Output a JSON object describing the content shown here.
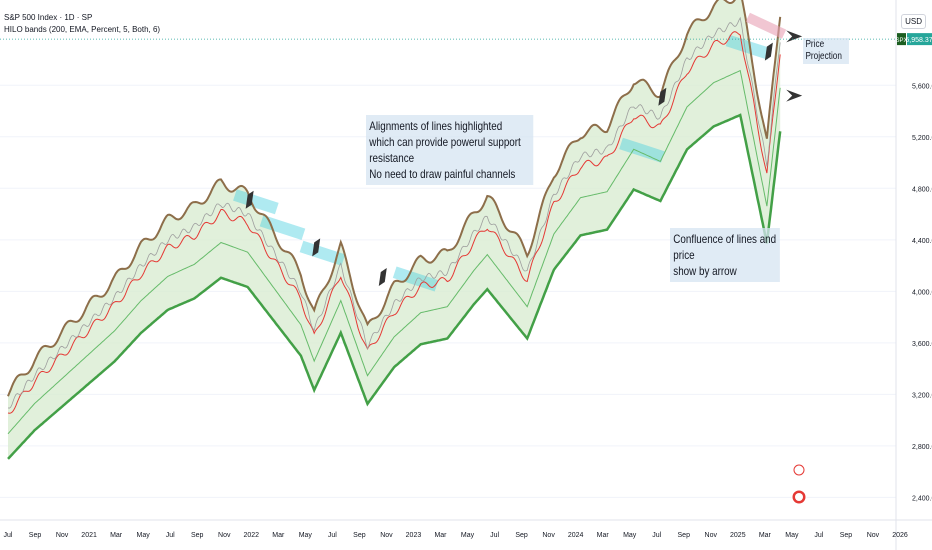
{
  "header": {
    "title": "S&P 500 Index · 1D · SP",
    "indicator": "HILO bands (200, EMA, Percent, 5, Both, 6)",
    "currency": "USD"
  },
  "price_tag": {
    "symbol": "SPX",
    "value": "5,958.37",
    "color": "#26a69a"
  },
  "annotations": {
    "alignments": [
      "Alignments of lines highlighted",
      "which can provide powerul support resistance",
      "No need to draw painful channels"
    ],
    "confluence": [
      "Confluence of lines and price",
      "show by arrow"
    ],
    "projection": "Price Projection"
  },
  "colors": {
    "upper_band": "#8d6e4a",
    "lower_band": "#43a047",
    "band_fill": "#d9ecd2",
    "mid_line": "#e53935",
    "inner_green": "#66bb6a",
    "highlight": "#4dd0e1",
    "highlight_pink": "#e8a0b4",
    "arrow": "#333333",
    "grid": "#f0f3fa"
  },
  "chart_data": {
    "type": "line",
    "title": "S&P 500 Index · 1D · SP",
    "xlabel": "",
    "ylabel": "",
    "ylim": [
      2240,
      6200
    ],
    "y_ticks": [
      2400,
      2800,
      3200,
      3600,
      4000,
      4400,
      4800,
      5200,
      5600
    ],
    "x_ticks": [
      "Jul",
      "Sep",
      "Nov",
      "2021",
      "Mar",
      "May",
      "Jul",
      "Sep",
      "Nov",
      "2022",
      "Mar",
      "May",
      "Jul",
      "Sep",
      "Nov",
      "2023",
      "Mar",
      "May",
      "Jul",
      "Sep",
      "Nov",
      "2024",
      "Mar",
      "May",
      "Jul",
      "Sep",
      "Nov",
      "2025",
      "Mar",
      "May",
      "Jul",
      "Sep",
      "Nov",
      "2026"
    ],
    "series": [
      {
        "name": "",
        "role": "price",
        "points": [
          [
            "Jul 2020",
            3100
          ],
          [
            "Sep 2020",
            3350
          ],
          [
            "Nov 2020",
            3550
          ],
          [
            "Jan 2021",
            3750
          ],
          [
            "Mar 2021",
            3950
          ],
          [
            "May 2021",
            4200
          ],
          [
            "Jul 2021",
            4400
          ],
          [
            "Sep 2021",
            4500
          ],
          [
            "Nov 2021",
            4680
          ],
          [
            "Jan 2022",
            4600
          ],
          [
            "Mar 2022",
            4300
          ],
          [
            "May 2022",
            4000
          ],
          [
            "Jun 2022",
            3700
          ],
          [
            "Aug 2022",
            4200
          ],
          [
            "Oct 2022",
            3580
          ],
          [
            "Dec 2022",
            3900
          ],
          [
            "Feb 2023",
            4100
          ],
          [
            "Apr 2023",
            4150
          ],
          [
            "Jun 2023",
            4450
          ],
          [
            "Jul 2023",
            4580
          ],
          [
            "Oct 2023",
            4150
          ],
          [
            "Dec 2023",
            4750
          ],
          [
            "Feb 2024",
            5050
          ],
          [
            "Apr 2024",
            5100
          ],
          [
            "Jun 2024",
            5450
          ],
          [
            "Aug 2024",
            5350
          ],
          [
            "Oct 2024",
            5800
          ],
          [
            "Dec 2024",
            6000
          ],
          [
            "Feb 2025",
            6100
          ],
          [
            "Apr 2025",
            4980
          ],
          [
            "May 2025",
            5958
          ]
        ]
      }
    ],
    "highlight_segments": [
      [
        "Jan 2022",
        4700
      ],
      [
        "Mar 2022",
        4500
      ],
      [
        "Jun 2022",
        4300
      ],
      [
        "Jan 2023",
        4100
      ],
      [
        "Jun 2024",
        5100
      ],
      [
        "Feb 2025",
        5900
      ]
    ]
  }
}
